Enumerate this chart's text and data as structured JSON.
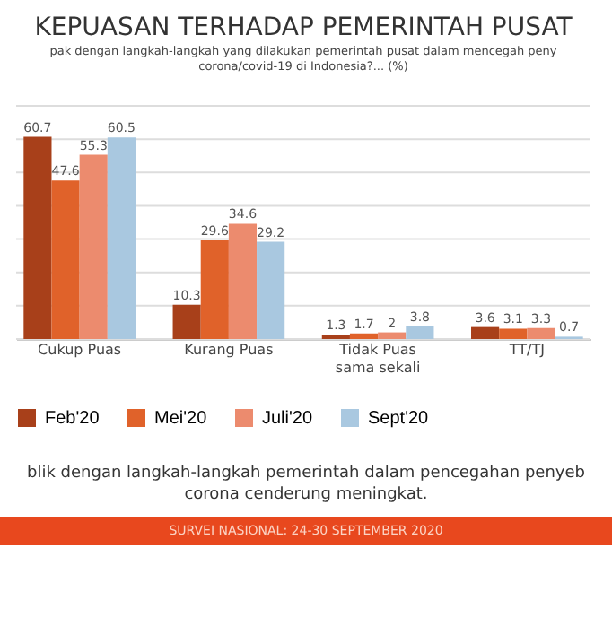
{
  "chart_data": {
    "type": "bar",
    "title": "KEPUASAN TERHADAP PEMERINTAH PUSAT",
    "subtitle": [
      "pak dengan langkah-langkah yang dilakukan pemerintah pusat dalam mencegah peny",
      "corona/covid-19 di Indonesia?... (%)"
    ],
    "categories": [
      "Cukup Puas",
      "Kurang Puas",
      "Tidak Puas sama sekali",
      "TT/TJ"
    ],
    "series": [
      {
        "name": "Feb'20",
        "color": "#a8401a",
        "values": [
          60.7,
          10.3,
          1.3,
          3.6
        ]
      },
      {
        "name": "Mei'20",
        "color": "#e0622a",
        "values": [
          47.6,
          29.6,
          1.7,
          3.1
        ]
      },
      {
        "name": "Juli'20",
        "color": "#ec8b6e",
        "values": [
          55.3,
          34.6,
          2,
          3.3
        ]
      },
      {
        "name": "Sept'20",
        "color": "#a9c8e0",
        "values": [
          60.5,
          29.2,
          3.8,
          0.7
        ]
      }
    ],
    "ylim": [
      0,
      70
    ],
    "yticks": [
      {
        "value": 0,
        "label": null
      },
      {
        "value": 10,
        "label": null
      },
      {
        "value": 20,
        "label": null
      },
      {
        "value": 30,
        "label": null
      },
      {
        "value": 40,
        "label": null
      },
      {
        "value": 50,
        "label": null
      },
      {
        "value": 60,
        "label": null
      },
      {
        "value": 70,
        "label": null
      }
    ],
    "grid": "y",
    "legend": "bottom",
    "data_labels": true,
    "tick_labels": "x",
    "annotations": [
      "blik dengan langkah-langkah pemerintah dalam pencegahan penyeb",
      "corona cenderung meningkat.",
      "SURVEI NASIONAL: 24-30 SEPTEMBER 2020"
    ]
  }
}
